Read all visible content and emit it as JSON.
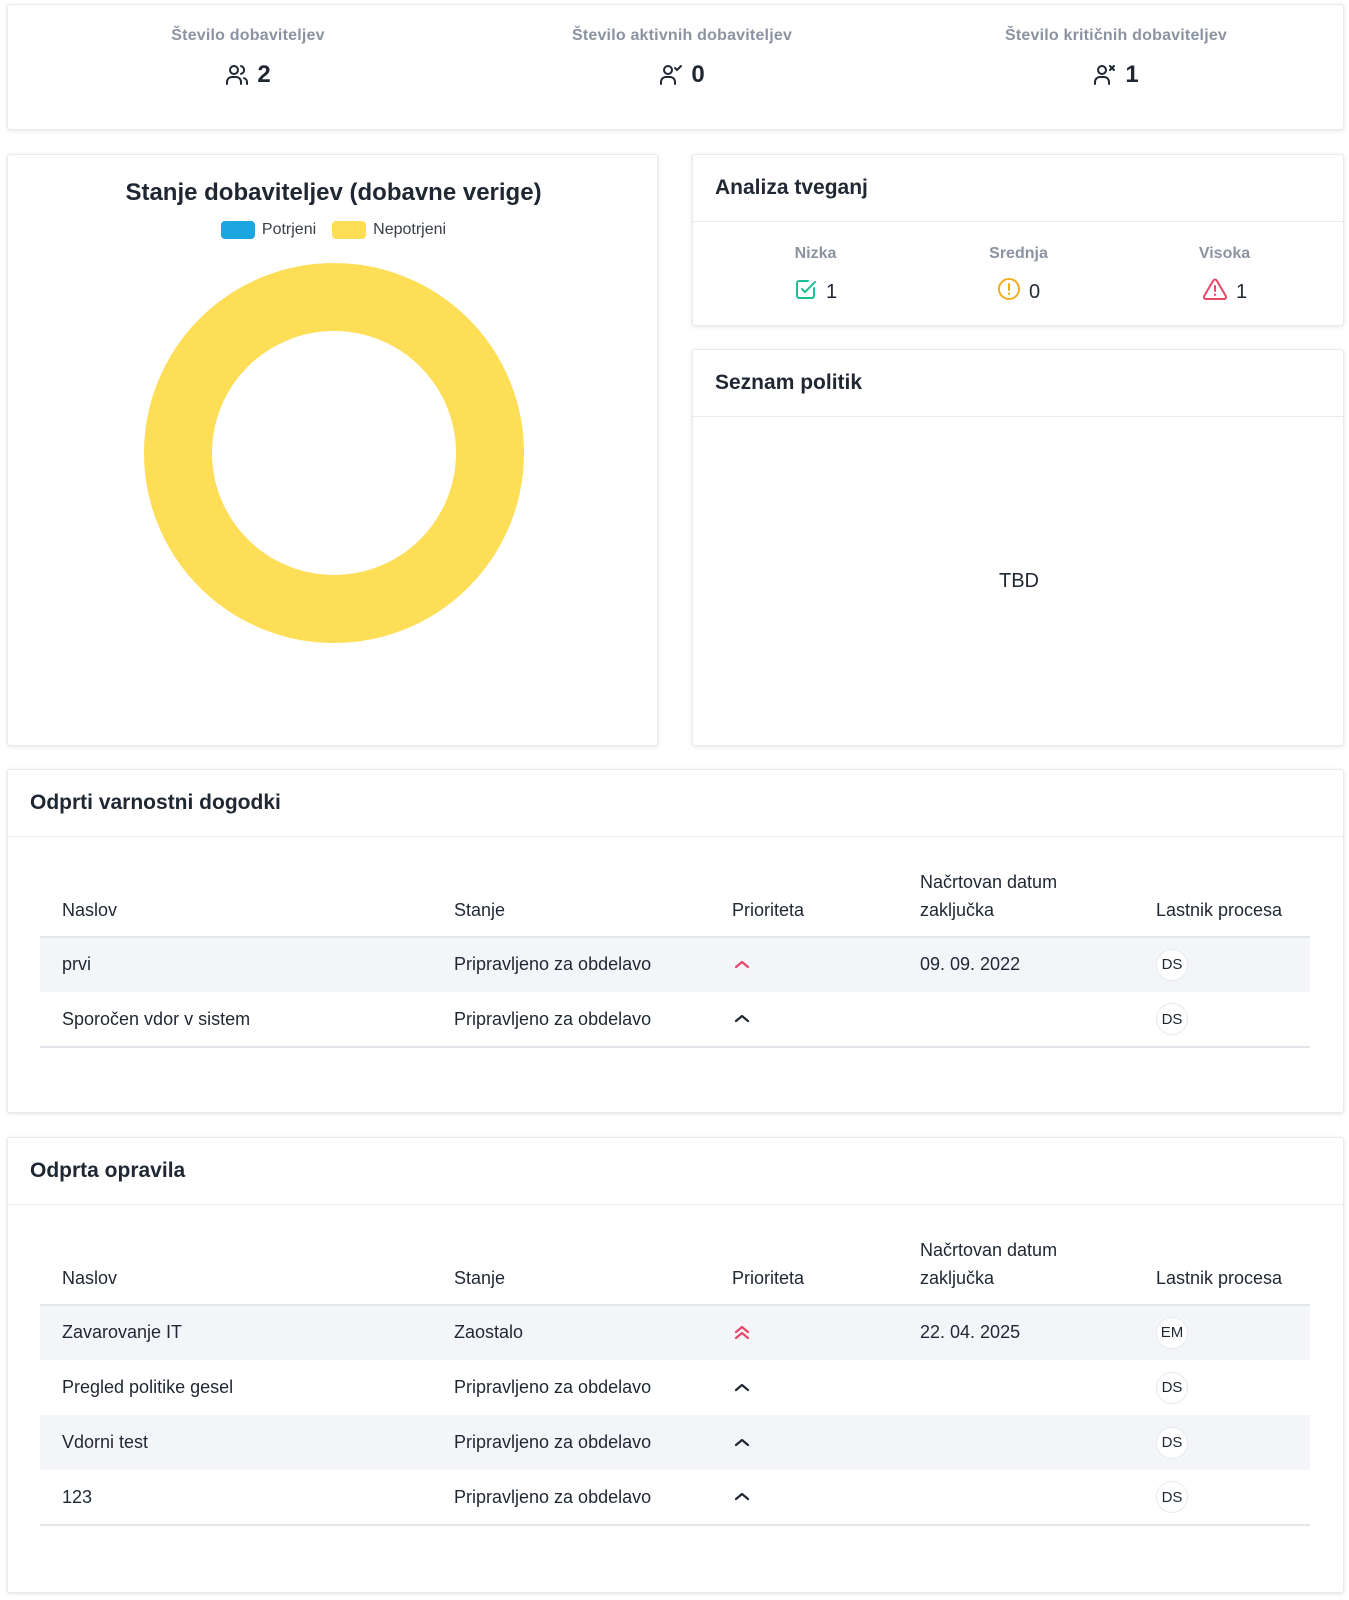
{
  "kpis": [
    {
      "label": "Število dobaviteljev",
      "value": "2",
      "icon": "users-icon"
    },
    {
      "label": "Število aktivnih dobaviteljev",
      "value": "0",
      "icon": "user-check-icon"
    },
    {
      "label": "Število kritičnih dobaviteljev",
      "value": "1",
      "icon": "user-x-icon"
    }
  ],
  "chart": {
    "title": "Stanje dobaviteljev (dobavne verige)",
    "legend": [
      {
        "label": "Potrjeni",
        "color": "#1ba6e0"
      },
      {
        "label": "Nepotrjeni",
        "color": "#fedd57"
      }
    ]
  },
  "chart_data": {
    "type": "pie",
    "variant": "doughnut",
    "title": "Stanje dobaviteljev (dobavne verige)",
    "categories": [
      "Potrjeni",
      "Nepotrjeni"
    ],
    "values": [
      0,
      2
    ],
    "colors": [
      "#1ba6e0",
      "#fedd57"
    ],
    "legend": "top"
  },
  "risk": {
    "title": "Analiza tveganj",
    "levels": [
      {
        "label": "Nizka",
        "value": "1",
        "icon": "check-square-icon",
        "color": "#1dbf98"
      },
      {
        "label": "Srednja",
        "value": "0",
        "icon": "alert-circle-icon",
        "color": "#f0ad1e"
      },
      {
        "label": "Visoka",
        "value": "1",
        "icon": "alert-triangle-icon",
        "color": "#e8476a"
      }
    ]
  },
  "policies": {
    "title": "Seznam politik",
    "body": "TBD"
  },
  "incidents": {
    "title": "Odprti varnostni dogodki",
    "columns": [
      "Naslov",
      "Stanje",
      "Prioriteta",
      "Načrtovan datum zaključka",
      "Lastnik procesa"
    ],
    "rows": [
      {
        "title": "prvi",
        "state": "Pripravljeno za obdelavo",
        "priority": "high",
        "date": "09. 09. 2022",
        "owner": "DS"
      },
      {
        "title": "Sporočen vdor v sistem",
        "state": "Pripravljeno za obdelavo",
        "priority": "medium",
        "date": "",
        "owner": "DS"
      }
    ]
  },
  "tasks": {
    "title": "Odprta opravila",
    "columns": [
      "Naslov",
      "Stanje",
      "Prioriteta",
      "Načrtovan datum zaključka",
      "Lastnik procesa"
    ],
    "rows": [
      {
        "title": "Zavarovanje IT",
        "state": "Zaostalo",
        "priority": "highest",
        "date": "22. 04. 2025",
        "owner": "EM"
      },
      {
        "title": "Pregled politike gesel",
        "state": "Pripravljeno za obdelavo",
        "priority": "medium",
        "date": "",
        "owner": "DS"
      },
      {
        "title": "Vdorni test",
        "state": "Pripravljeno za obdelavo",
        "priority": "medium",
        "date": "",
        "owner": "DS"
      },
      {
        "title": "123",
        "state": "Pripravljeno za obdelavo",
        "priority": "medium",
        "date": "",
        "owner": "DS"
      }
    ]
  },
  "colors": {
    "priority_high": "#e8476a",
    "priority_medium": "#1f2733"
  }
}
